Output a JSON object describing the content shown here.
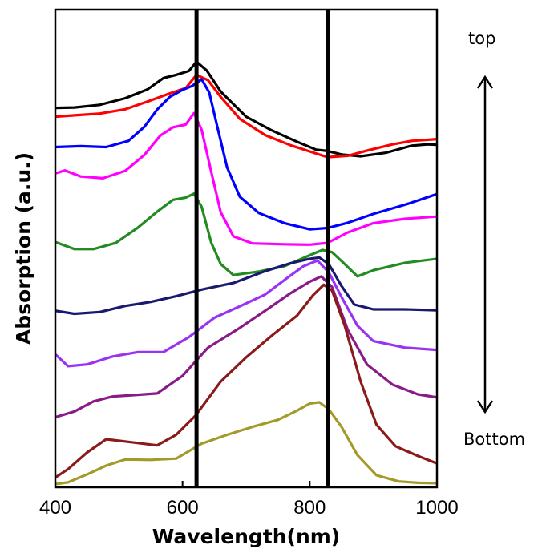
{
  "chart_data": {
    "type": "line",
    "xlabel": "Wavelength(nm)",
    "ylabel": "Absorption (a.u.)",
    "xlim": [
      400,
      1000
    ],
    "ylim": [
      0,
      10
    ],
    "x_ticks": [
      400,
      600,
      800,
      1000
    ],
    "x_tick_labels": [
      "400",
      "600",
      "800",
      "1000"
    ],
    "y_ticks_labeled": false,
    "grid": false,
    "vertical_lines": [
      622,
      828
    ],
    "annotations": {
      "top": "top",
      "bottom": "Bottom"
    },
    "arrow": "double-headed vertical, right side",
    "series": [
      {
        "color": "#000000",
        "points": [
          [
            400,
            8.55
          ],
          [
            430,
            8.56
          ],
          [
            470,
            8.62
          ],
          [
            510,
            8.77
          ],
          [
            545,
            8.97
          ],
          [
            570,
            9.23
          ],
          [
            590,
            9.3
          ],
          [
            610,
            9.39
          ],
          [
            622,
            9.6
          ],
          [
            638,
            9.4
          ],
          [
            660,
            8.92
          ],
          [
            700,
            8.35
          ],
          [
            740,
            8.04
          ],
          [
            780,
            7.78
          ],
          [
            810,
            7.6
          ],
          [
            828,
            7.57
          ],
          [
            850,
            7.49
          ],
          [
            880,
            7.45
          ],
          [
            920,
            7.53
          ],
          [
            960,
            7.69
          ],
          [
            985,
            7.72
          ],
          [
            1000,
            7.71
          ]
        ]
      },
      {
        "color": "#ff0000",
        "points": [
          [
            400,
            8.35
          ],
          [
            430,
            8.38
          ],
          [
            470,
            8.42
          ],
          [
            510,
            8.52
          ],
          [
            550,
            8.72
          ],
          [
            580,
            8.88
          ],
          [
            605,
            9.0
          ],
          [
            622,
            9.3
          ],
          [
            640,
            9.18
          ],
          [
            660,
            8.8
          ],
          [
            690,
            8.3
          ],
          [
            730,
            7.93
          ],
          [
            770,
            7.7
          ],
          [
            800,
            7.56
          ],
          [
            828,
            7.43
          ],
          [
            860,
            7.46
          ],
          [
            890,
            7.58
          ],
          [
            930,
            7.72
          ],
          [
            960,
            7.8
          ],
          [
            1000,
            7.84
          ]
        ]
      },
      {
        "color": "#0000ff",
        "points": [
          [
            400,
            7.66
          ],
          [
            440,
            7.68
          ],
          [
            480,
            7.66
          ],
          [
            515,
            7.8
          ],
          [
            540,
            8.12
          ],
          [
            560,
            8.51
          ],
          [
            580,
            8.8
          ],
          [
            600,
            8.96
          ],
          [
            615,
            9.05
          ],
          [
            630,
            9.2
          ],
          [
            642,
            8.9
          ],
          [
            655,
            8.1
          ],
          [
            670,
            7.2
          ],
          [
            690,
            6.53
          ],
          [
            720,
            6.16
          ],
          [
            760,
            5.93
          ],
          [
            800,
            5.79
          ],
          [
            828,
            5.82
          ],
          [
            860,
            5.94
          ],
          [
            900,
            6.14
          ],
          [
            950,
            6.35
          ],
          [
            1000,
            6.59
          ]
        ]
      },
      {
        "color": "#ff00ff",
        "points": [
          [
            400,
            7.06
          ],
          [
            415,
            7.13
          ],
          [
            440,
            6.99
          ],
          [
            475,
            6.95
          ],
          [
            510,
            7.12
          ],
          [
            540,
            7.48
          ],
          [
            565,
            7.92
          ],
          [
            585,
            8.11
          ],
          [
            605,
            8.17
          ],
          [
            618,
            8.43
          ],
          [
            630,
            8.05
          ],
          [
            645,
            7.1
          ],
          [
            660,
            6.18
          ],
          [
            680,
            5.63
          ],
          [
            710,
            5.47
          ],
          [
            760,
            5.45
          ],
          [
            800,
            5.44
          ],
          [
            828,
            5.48
          ],
          [
            860,
            5.72
          ],
          [
            900,
            5.93
          ],
          [
            950,
            6.03
          ],
          [
            1000,
            6.08
          ]
        ]
      },
      {
        "color": "#228b22",
        "points": [
          [
            400,
            5.5
          ],
          [
            430,
            5.34
          ],
          [
            460,
            5.34
          ],
          [
            495,
            5.48
          ],
          [
            530,
            5.83
          ],
          [
            560,
            6.19
          ],
          [
            585,
            6.46
          ],
          [
            605,
            6.51
          ],
          [
            618,
            6.6
          ],
          [
            630,
            6.3
          ],
          [
            645,
            5.49
          ],
          [
            660,
            5.0
          ],
          [
            680,
            4.75
          ],
          [
            720,
            4.83
          ],
          [
            760,
            4.95
          ],
          [
            800,
            5.2
          ],
          [
            820,
            5.32
          ],
          [
            835,
            5.27
          ],
          [
            855,
            5.0
          ],
          [
            875,
            4.72
          ],
          [
            900,
            4.86
          ],
          [
            950,
            5.03
          ],
          [
            1000,
            5.12
          ]
        ]
      },
      {
        "color": "#191970",
        "points": [
          [
            400,
            3.94
          ],
          [
            430,
            3.87
          ],
          [
            470,
            3.91
          ],
          [
            510,
            4.05
          ],
          [
            550,
            4.14
          ],
          [
            590,
            4.27
          ],
          [
            630,
            4.42
          ],
          [
            680,
            4.57
          ],
          [
            730,
            4.84
          ],
          [
            770,
            5.02
          ],
          [
            800,
            5.12
          ],
          [
            815,
            5.15
          ],
          [
            830,
            5.0
          ],
          [
            850,
            4.5
          ],
          [
            870,
            4.08
          ],
          [
            900,
            3.97
          ],
          [
            950,
            3.97
          ],
          [
            1000,
            3.95
          ]
        ]
      },
      {
        "color": "#9932f2",
        "points": [
          [
            400,
            2.95
          ],
          [
            420,
            2.68
          ],
          [
            450,
            2.72
          ],
          [
            490,
            2.9
          ],
          [
            530,
            3.0
          ],
          [
            570,
            3.0
          ],
          [
            610,
            3.34
          ],
          [
            650,
            3.78
          ],
          [
            690,
            4.04
          ],
          [
            730,
            4.31
          ],
          [
            765,
            4.69
          ],
          [
            790,
            4.95
          ],
          [
            812,
            5.08
          ],
          [
            830,
            4.81
          ],
          [
            850,
            4.25
          ],
          [
            875,
            3.6
          ],
          [
            900,
            3.25
          ],
          [
            950,
            3.1
          ],
          [
            1000,
            3.05
          ]
        ]
      },
      {
        "color": "#8b1a89",
        "points": [
          [
            400,
            1.52
          ],
          [
            430,
            1.65
          ],
          [
            460,
            1.88
          ],
          [
            490,
            1.99
          ],
          [
            520,
            2.02
          ],
          [
            560,
            2.06
          ],
          [
            600,
            2.46
          ],
          [
            640,
            3.1
          ],
          [
            690,
            3.55
          ],
          [
            735,
            3.99
          ],
          [
            770,
            4.34
          ],
          [
            800,
            4.6
          ],
          [
            818,
            4.72
          ],
          [
            835,
            4.48
          ],
          [
            860,
            3.5
          ],
          [
            890,
            2.72
          ],
          [
            930,
            2.26
          ],
          [
            970,
            2.04
          ],
          [
            1000,
            1.97
          ]
        ]
      },
      {
        "color": "#8b1a1a",
        "points": [
          [
            400,
            0.15
          ],
          [
            420,
            0.34
          ],
          [
            450,
            0.72
          ],
          [
            480,
            1.02
          ],
          [
            520,
            0.95
          ],
          [
            560,
            0.88
          ],
          [
            590,
            1.12
          ],
          [
            620,
            1.55
          ],
          [
            660,
            2.33
          ],
          [
            700,
            2.88
          ],
          [
            740,
            3.37
          ],
          [
            780,
            3.83
          ],
          [
            805,
            4.29
          ],
          [
            822,
            4.53
          ],
          [
            835,
            4.4
          ],
          [
            855,
            3.6
          ],
          [
            880,
            2.33
          ],
          [
            905,
            1.35
          ],
          [
            935,
            0.86
          ],
          [
            970,
            0.64
          ],
          [
            1000,
            0.47
          ]
        ]
      },
      {
        "color": "#a39a2a",
        "points": [
          [
            400,
            0.0
          ],
          [
            420,
            0.04
          ],
          [
            450,
            0.22
          ],
          [
            480,
            0.42
          ],
          [
            510,
            0.56
          ],
          [
            550,
            0.55
          ],
          [
            590,
            0.58
          ],
          [
            630,
            0.92
          ],
          [
            670,
            1.12
          ],
          [
            710,
            1.3
          ],
          [
            750,
            1.46
          ],
          [
            780,
            1.67
          ],
          [
            800,
            1.83
          ],
          [
            815,
            1.86
          ],
          [
            830,
            1.7
          ],
          [
            850,
            1.3
          ],
          [
            875,
            0.66
          ],
          [
            905,
            0.2
          ],
          [
            940,
            0.06
          ],
          [
            970,
            0.03
          ],
          [
            1000,
            0.02
          ]
        ]
      }
    ]
  }
}
